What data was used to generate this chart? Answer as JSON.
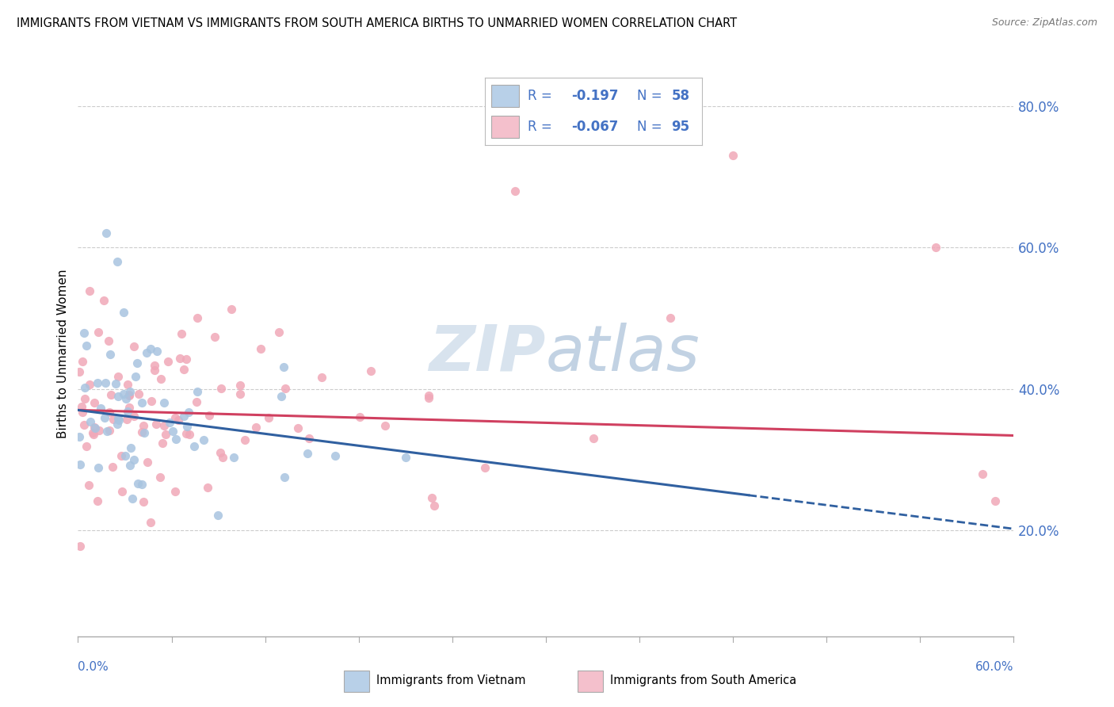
{
  "title": "IMMIGRANTS FROM VIETNAM VS IMMIGRANTS FROM SOUTH AMERICA BIRTHS TO UNMARRIED WOMEN CORRELATION CHART",
  "source": "Source: ZipAtlas.com",
  "ylabel": "Births to Unmarried Women",
  "y_ticks": [
    0.2,
    0.4,
    0.6,
    0.8
  ],
  "y_tick_labels": [
    "20.0%",
    "40.0%",
    "60.0%",
    "80.0%"
  ],
  "x_min": 0.0,
  "x_max": 0.6,
  "y_min": 0.05,
  "y_max": 0.85,
  "series": [
    {
      "name": "Immigrants from Vietnam",
      "R_label": "-0.197",
      "N_label": "58",
      "dot_color": "#a8c4e0",
      "trend_color": "#3060a0",
      "legend_color": "#b8d0e8"
    },
    {
      "name": "Immigrants from South America",
      "R_label": "-0.067",
      "N_label": "95",
      "dot_color": "#f0a8b8",
      "trend_color": "#d04060",
      "legend_color": "#f4c0cc"
    }
  ],
  "legend_text_color": "#4472c4",
  "watermark_color": "#c8d8e8",
  "grid_color": "#cccccc",
  "axis_color": "#aaaaaa"
}
